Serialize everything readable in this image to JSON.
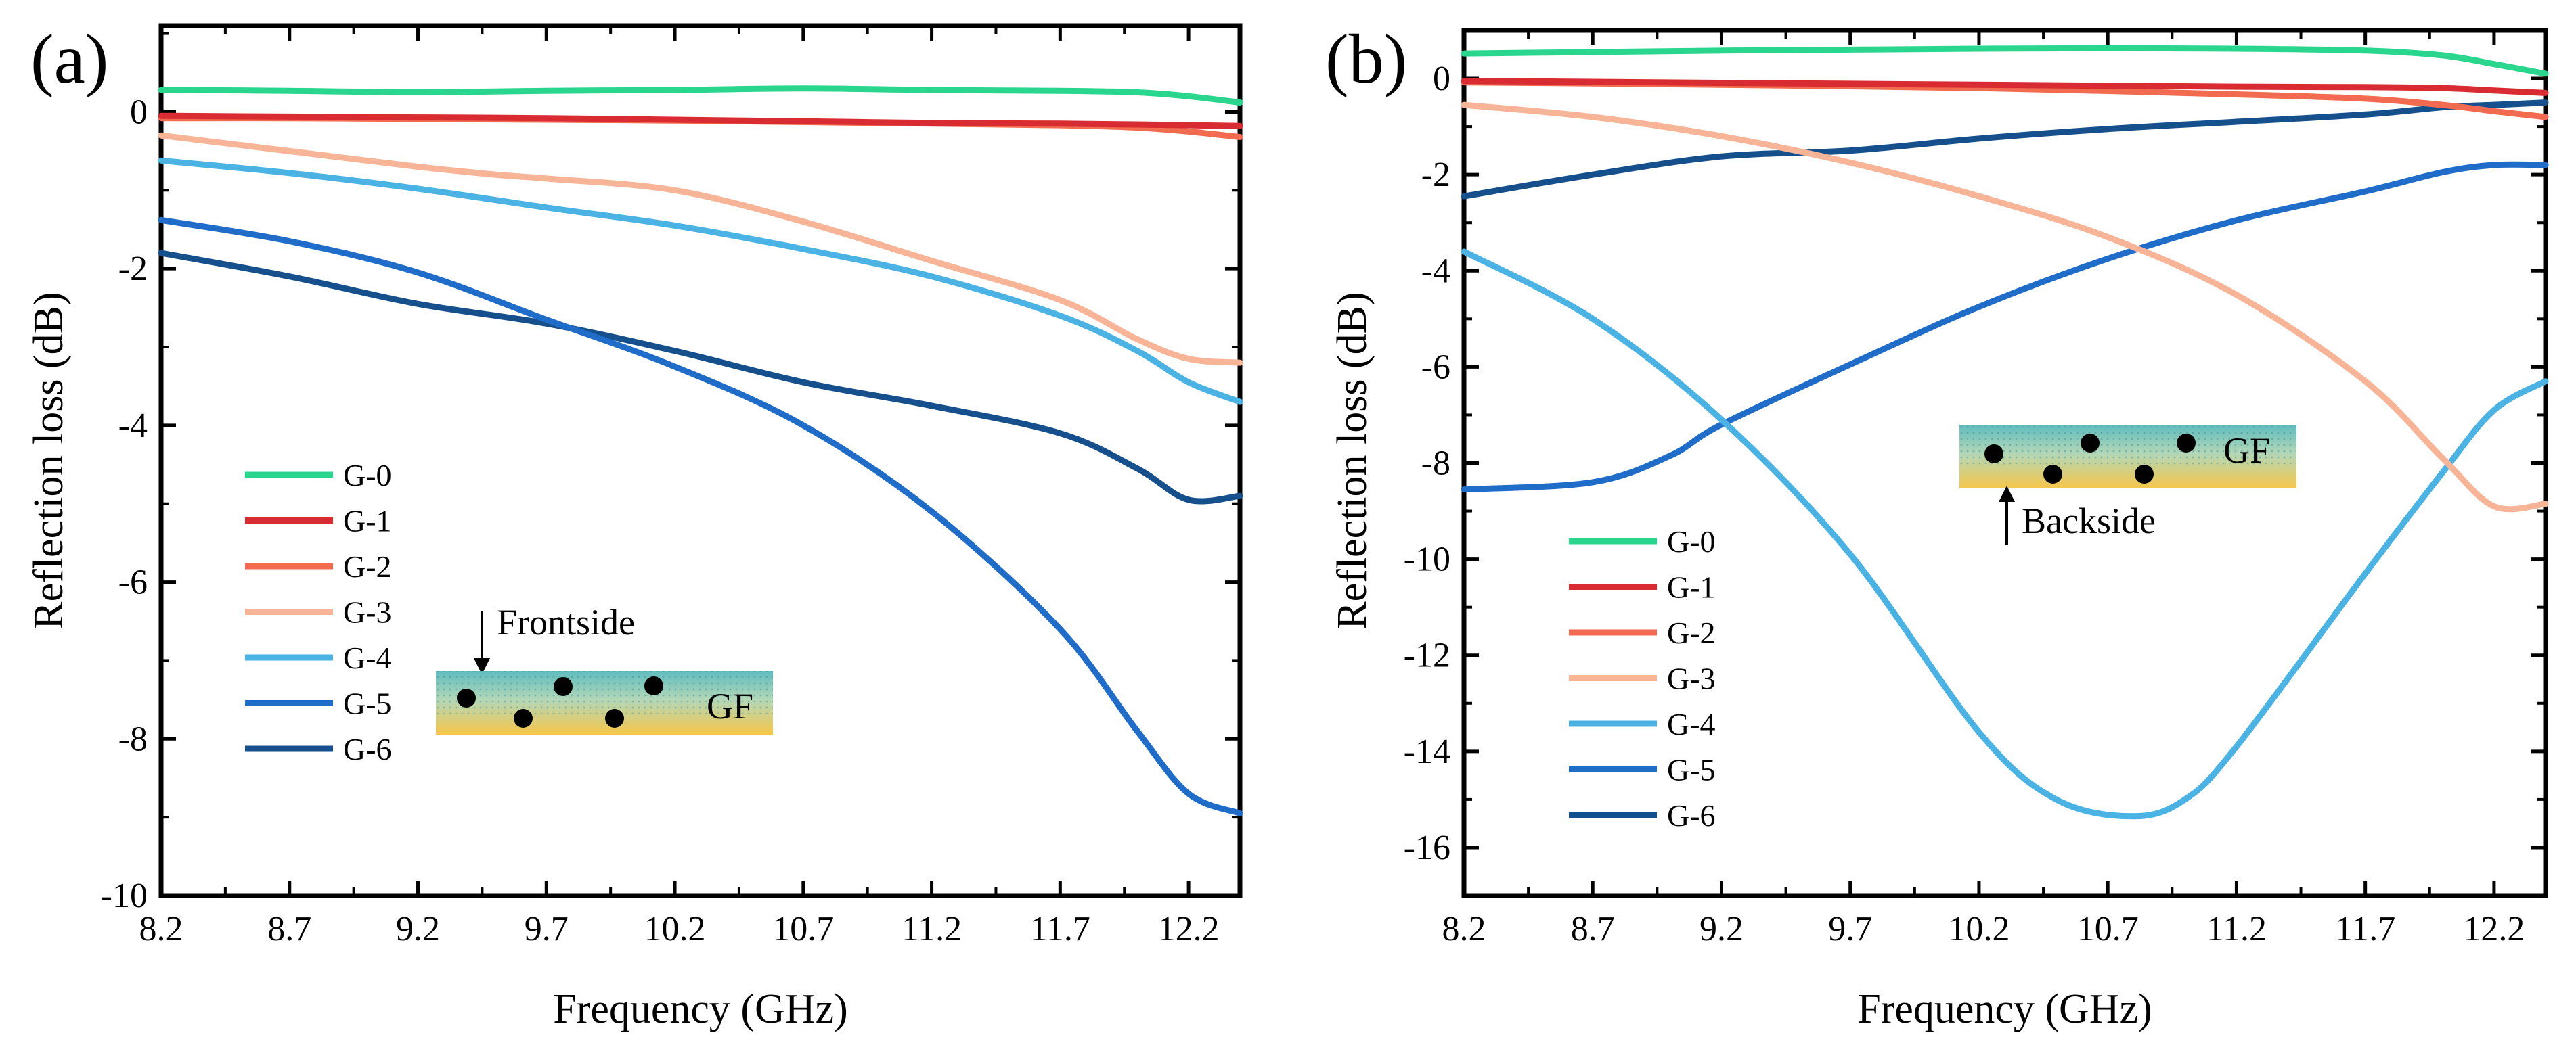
{
  "chart_data": [
    {
      "type": "line",
      "panel": "(a)",
      "xlabel": "Frequency (GHz)",
      "ylabel": "Reflection loss (dB)",
      "xlim": [
        8.2,
        12.4
      ],
      "ylim": [
        -10,
        1.1
      ],
      "xticks": [
        "8.2",
        "8.7",
        "9.2",
        "9.7",
        "10.2",
        "10.7",
        "11.2",
        "11.7",
        "12.2"
      ],
      "yticks": [
        "0",
        "-2",
        "-4",
        "-6",
        "-8",
        "-10"
      ],
      "legend_position": "lower-left",
      "inset": {
        "arrow_text": "Frontside",
        "material_label": "GF",
        "arrow_direction": "down"
      },
      "series": [
        {
          "name": "G-0",
          "color": "#2ad68e",
          "x": [
            8.2,
            8.7,
            9.2,
            9.7,
            10.2,
            10.7,
            11.2,
            11.7,
            12.0,
            12.2,
            12.4
          ],
          "y": [
            0.28,
            0.27,
            0.25,
            0.27,
            0.28,
            0.3,
            0.28,
            0.27,
            0.25,
            0.2,
            0.12
          ]
        },
        {
          "name": "G-1",
          "color": "#d92b32",
          "x": [
            8.2,
            8.7,
            9.2,
            9.7,
            10.2,
            10.7,
            11.2,
            11.7,
            12.0,
            12.2,
            12.4
          ],
          "y": [
            -0.05,
            -0.06,
            -0.07,
            -0.08,
            -0.1,
            -0.12,
            -0.14,
            -0.15,
            -0.16,
            -0.17,
            -0.18
          ]
        },
        {
          "name": "G-2",
          "color": "#f26b50",
          "x": [
            8.2,
            8.7,
            9.2,
            9.7,
            10.2,
            10.7,
            11.2,
            11.7,
            12.0,
            12.2,
            12.4
          ],
          "y": [
            -0.08,
            -0.08,
            -0.09,
            -0.1,
            -0.11,
            -0.13,
            -0.15,
            -0.17,
            -0.2,
            -0.25,
            -0.32
          ]
        },
        {
          "name": "G-3",
          "color": "#f8b497",
          "x": [
            8.2,
            8.7,
            9.2,
            9.5,
            9.7,
            10.2,
            10.7,
            11.2,
            11.7,
            12.0,
            12.2,
            12.4
          ],
          "y": [
            -0.3,
            -0.5,
            -0.7,
            -0.8,
            -0.85,
            -1.0,
            -1.4,
            -1.9,
            -2.4,
            -2.9,
            -3.15,
            -3.2
          ]
        },
        {
          "name": "G-4",
          "color": "#4bb3e3",
          "x": [
            8.2,
            8.7,
            9.2,
            9.7,
            10.2,
            10.7,
            11.2,
            11.7,
            12.0,
            12.2,
            12.4
          ],
          "y": [
            -0.62,
            -0.78,
            -0.98,
            -1.22,
            -1.45,
            -1.75,
            -2.1,
            -2.6,
            -3.05,
            -3.45,
            -3.7
          ]
        },
        {
          "name": "G-5",
          "color": "#1f6dc8",
          "x": [
            8.2,
            8.7,
            9.2,
            9.7,
            10.2,
            10.7,
            11.2,
            11.7,
            12.0,
            12.2,
            12.4
          ],
          "y": [
            -1.38,
            -1.65,
            -2.05,
            -2.65,
            -3.25,
            -4.0,
            -5.1,
            -6.6,
            -7.9,
            -8.7,
            -8.95
          ]
        },
        {
          "name": "G-6",
          "color": "#154f8c",
          "x": [
            8.2,
            8.7,
            9.2,
            9.7,
            10.2,
            10.7,
            11.2,
            11.7,
            12.0,
            12.2,
            12.4
          ],
          "y": [
            -1.8,
            -2.1,
            -2.45,
            -2.7,
            -3.05,
            -3.45,
            -3.75,
            -4.1,
            -4.55,
            -4.95,
            -4.9
          ]
        }
      ]
    },
    {
      "type": "line",
      "panel": "(b)",
      "xlabel": "Frequency (GHz)",
      "ylabel": "Reflection loss (dB)",
      "xlim": [
        8.2,
        12.4
      ],
      "ylim": [
        -17,
        1
      ],
      "xticks": [
        "8.2",
        "8.7",
        "9.2",
        "9.7",
        "10.2",
        "10.7",
        "11.2",
        "11.7",
        "12.2"
      ],
      "yticks": [
        "0",
        "-2",
        "-4",
        "-6",
        "-8",
        "-10",
        "-12",
        "-14",
        "-16"
      ],
      "legend_position": "lower-left",
      "inset": {
        "arrow_text": "Backside",
        "material_label": "GF",
        "arrow_direction": "up"
      },
      "series": [
        {
          "name": "G-0",
          "color": "#2ad68e",
          "x": [
            8.2,
            8.7,
            9.2,
            9.7,
            10.2,
            10.7,
            11.2,
            11.7,
            12.0,
            12.2,
            12.4
          ],
          "y": [
            0.52,
            0.55,
            0.58,
            0.6,
            0.62,
            0.63,
            0.62,
            0.58,
            0.48,
            0.3,
            0.1
          ]
        },
        {
          "name": "G-1",
          "color": "#d92b32",
          "x": [
            8.2,
            8.7,
            9.2,
            9.7,
            10.2,
            10.7,
            11.2,
            11.7,
            12.0,
            12.2,
            12.4
          ],
          "y": [
            -0.05,
            -0.07,
            -0.09,
            -0.11,
            -0.13,
            -0.15,
            -0.17,
            -0.18,
            -0.2,
            -0.25,
            -0.3
          ]
        },
        {
          "name": "G-2",
          "color": "#f26b50",
          "x": [
            8.2,
            8.7,
            9.2,
            9.7,
            10.2,
            10.7,
            11.2,
            11.7,
            12.0,
            12.2,
            12.4
          ],
          "y": [
            -0.08,
            -0.1,
            -0.13,
            -0.16,
            -0.2,
            -0.26,
            -0.33,
            -0.42,
            -0.55,
            -0.68,
            -0.8
          ]
        },
        {
          "name": "G-3",
          "color": "#f8b497",
          "x": [
            8.2,
            8.7,
            9.2,
            9.7,
            10.2,
            10.7,
            11.2,
            11.7,
            12.0,
            12.2,
            12.4
          ],
          "y": [
            -0.55,
            -0.8,
            -1.2,
            -1.75,
            -2.45,
            -3.3,
            -4.5,
            -6.3,
            -7.9,
            -8.9,
            -8.85
          ]
        },
        {
          "name": "G-4",
          "color": "#4bb3e3",
          "x": [
            8.2,
            8.7,
            9.2,
            9.7,
            10.2,
            10.5,
            10.8,
            11.0,
            11.2,
            11.7,
            12.0,
            12.2,
            12.4
          ],
          "y": [
            -3.6,
            -5.0,
            -7.1,
            -9.9,
            -13.6,
            -15.0,
            -15.35,
            -15.0,
            -13.9,
            -10.3,
            -8.2,
            -6.9,
            -6.3
          ]
        },
        {
          "name": "G-5",
          "color": "#1f6dc8",
          "x": [
            8.2,
            8.7,
            9.0,
            9.2,
            9.7,
            10.2,
            10.7,
            11.2,
            11.7,
            12.0,
            12.2,
            12.4
          ],
          "y": [
            -8.55,
            -8.4,
            -7.85,
            -7.2,
            -5.95,
            -4.75,
            -3.75,
            -2.95,
            -2.35,
            -1.95,
            -1.8,
            -1.8
          ]
        },
        {
          "name": "G-6",
          "color": "#154f8c",
          "x": [
            8.2,
            8.7,
            9.2,
            9.7,
            10.2,
            10.7,
            11.2,
            11.7,
            12.0,
            12.2,
            12.4
          ],
          "y": [
            -2.45,
            -2.0,
            -1.62,
            -1.5,
            -1.25,
            -1.05,
            -0.9,
            -0.75,
            -0.6,
            -0.55,
            -0.5
          ]
        }
      ]
    }
  ]
}
